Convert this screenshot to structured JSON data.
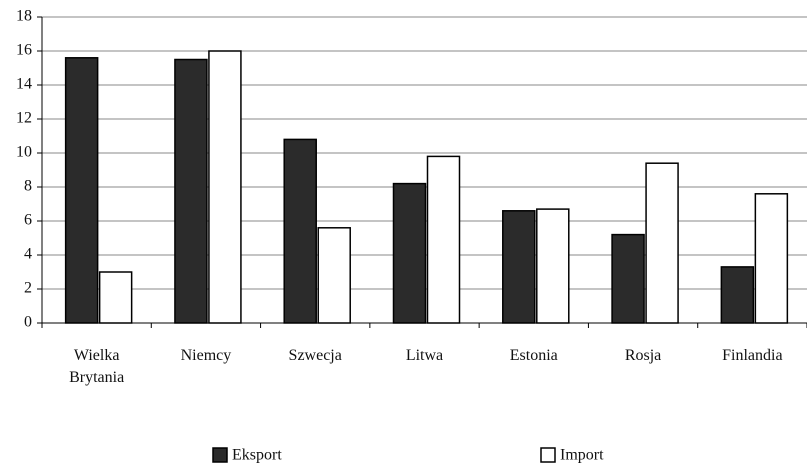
{
  "chart_data": {
    "type": "bar",
    "categories": [
      "Wielka Brytania",
      "Niemcy",
      "Szwecja",
      "Litwa",
      "Estonia",
      "Rosja",
      "Finlandia"
    ],
    "series": [
      {
        "name": "Eksport",
        "color": "#2b2b2b",
        "values": [
          15.6,
          15.5,
          10.8,
          8.2,
          6.6,
          5.2,
          3.3
        ]
      },
      {
        "name": "Import",
        "color": "#ffffff",
        "values": [
          3.0,
          16.0,
          5.6,
          9.8,
          6.7,
          9.4,
          7.6
        ]
      }
    ],
    "ylim": [
      0,
      18
    ],
    "yticks": [
      0,
      2,
      4,
      6,
      8,
      10,
      12,
      14,
      16,
      18
    ],
    "grid": true,
    "legend": "bottom"
  }
}
